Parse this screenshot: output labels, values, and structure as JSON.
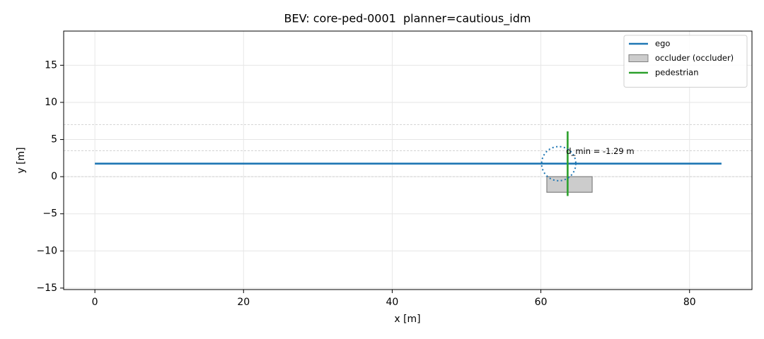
{
  "chart_data": {
    "type": "line",
    "title": "BEV: core-ped-0001  planner=cautious_idm",
    "x_label": "x [m]",
    "y_label": "y [m]",
    "xlim": [
      -4.2,
      88.4
    ],
    "ylim": [
      -15.2,
      19.6
    ],
    "xticks": [
      0,
      20,
      40,
      60,
      80
    ],
    "yticks": [
      {
        "value": -15,
        "label": "−15"
      },
      {
        "value": -10,
        "label": "−10"
      },
      {
        "value": -5,
        "label": "−5"
      },
      0,
      5,
      10,
      15
    ],
    "grid": true,
    "legend": "upper right",
    "lane_lines": [
      0,
      3.5,
      7
    ],
    "series": [
      {
        "name": "ego",
        "color": "#1f77b4",
        "x": [
          0,
          84.3
        ],
        "values": [
          1.75,
          1.75
        ]
      },
      {
        "name": "pedestrian",
        "color": "#2ca02c",
        "x": [
          63.6,
          63.6
        ],
        "values": [
          -2.6,
          6.1
        ]
      }
    ],
    "patches": [
      {
        "name": "occluder (occluder)",
        "color": "#cccccc",
        "edgecolor": "#808080",
        "x": [
          60.8,
          66.9
        ],
        "y": [
          -2.1,
          0
        ]
      }
    ],
    "circles": [
      {
        "color": "#1f77b4",
        "center": [
          62.4,
          1.75
        ],
        "radius": 2.3
      }
    ],
    "annotations": [
      {
        "text": "d_min = -1.29 m",
        "x": 63.4,
        "y": 3.4
      }
    ]
  }
}
